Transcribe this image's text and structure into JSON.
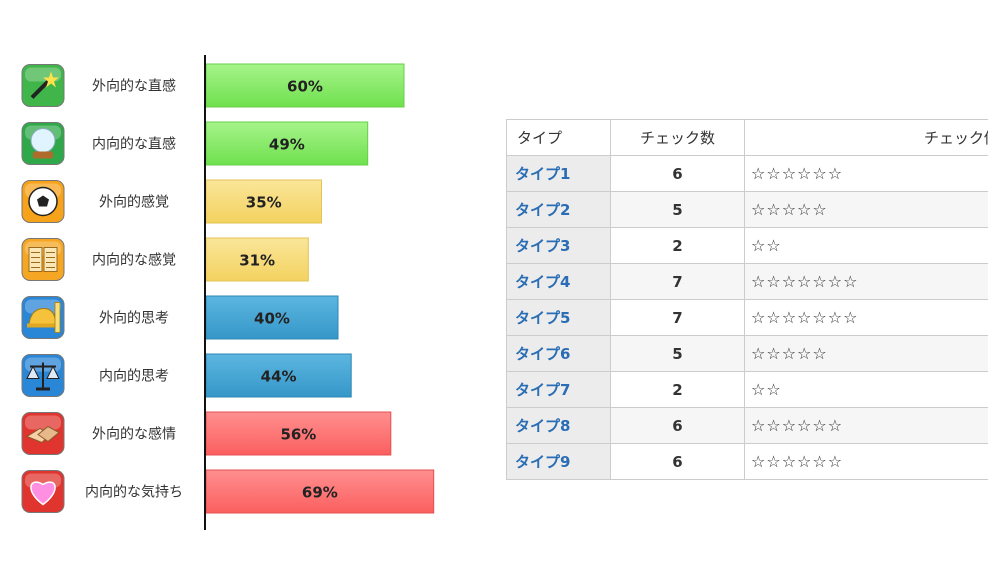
{
  "chart_data": {
    "type": "bar",
    "orientation": "horizontal",
    "categories": [
      "外向的な直感",
      "内向的な直感",
      "外向的感覚",
      "内向的な感覚",
      "外向的思考",
      "内向的思考",
      "外向的な感情",
      "内向的な気持ち"
    ],
    "values": [
      60,
      49,
      35,
      31,
      40,
      44,
      56,
      69
    ],
    "data_labels": [
      "60%",
      "49%",
      "35%",
      "31%",
      "40%",
      "44%",
      "56%",
      "69%"
    ],
    "icons": [
      "magic-wand-icon",
      "crystal-ball-icon",
      "soccer-ball-icon",
      "open-book-icon",
      "hard-hat-ruler-icon",
      "scales-icon",
      "handshake-icon",
      "heart-icon"
    ],
    "colors": [
      "#7ee85e",
      "#7ee85e",
      "#f7dc6f",
      "#f7dc6f",
      "#3fa0cf",
      "#3fa0cf",
      "#ff6b6b",
      "#ff6b6b"
    ],
    "xlim": [
      0,
      100
    ],
    "title": "",
    "xlabel": "",
    "ylabel": ""
  },
  "table": {
    "headers": [
      "タイプ",
      "チェック数",
      "チェック個数"
    ],
    "rows": [
      {
        "type": "タイプ1",
        "count": "6",
        "stars": "☆☆☆☆☆☆"
      },
      {
        "type": "タイプ2",
        "count": "5",
        "stars": "☆☆☆☆☆"
      },
      {
        "type": "タイプ3",
        "count": "2",
        "stars": "☆☆"
      },
      {
        "type": "タイプ4",
        "count": "7",
        "stars": "☆☆☆☆☆☆☆"
      },
      {
        "type": "タイプ5",
        "count": "7",
        "stars": "☆☆☆☆☆☆☆"
      },
      {
        "type": "タイプ6",
        "count": "5",
        "stars": "☆☆☆☆☆"
      },
      {
        "type": "タイプ7",
        "count": "2",
        "stars": "☆☆"
      },
      {
        "type": "タイプ8",
        "count": "6",
        "stars": "☆☆☆☆☆☆"
      },
      {
        "type": "タイプ9",
        "count": "6",
        "stars": "☆☆☆☆☆☆"
      }
    ]
  }
}
